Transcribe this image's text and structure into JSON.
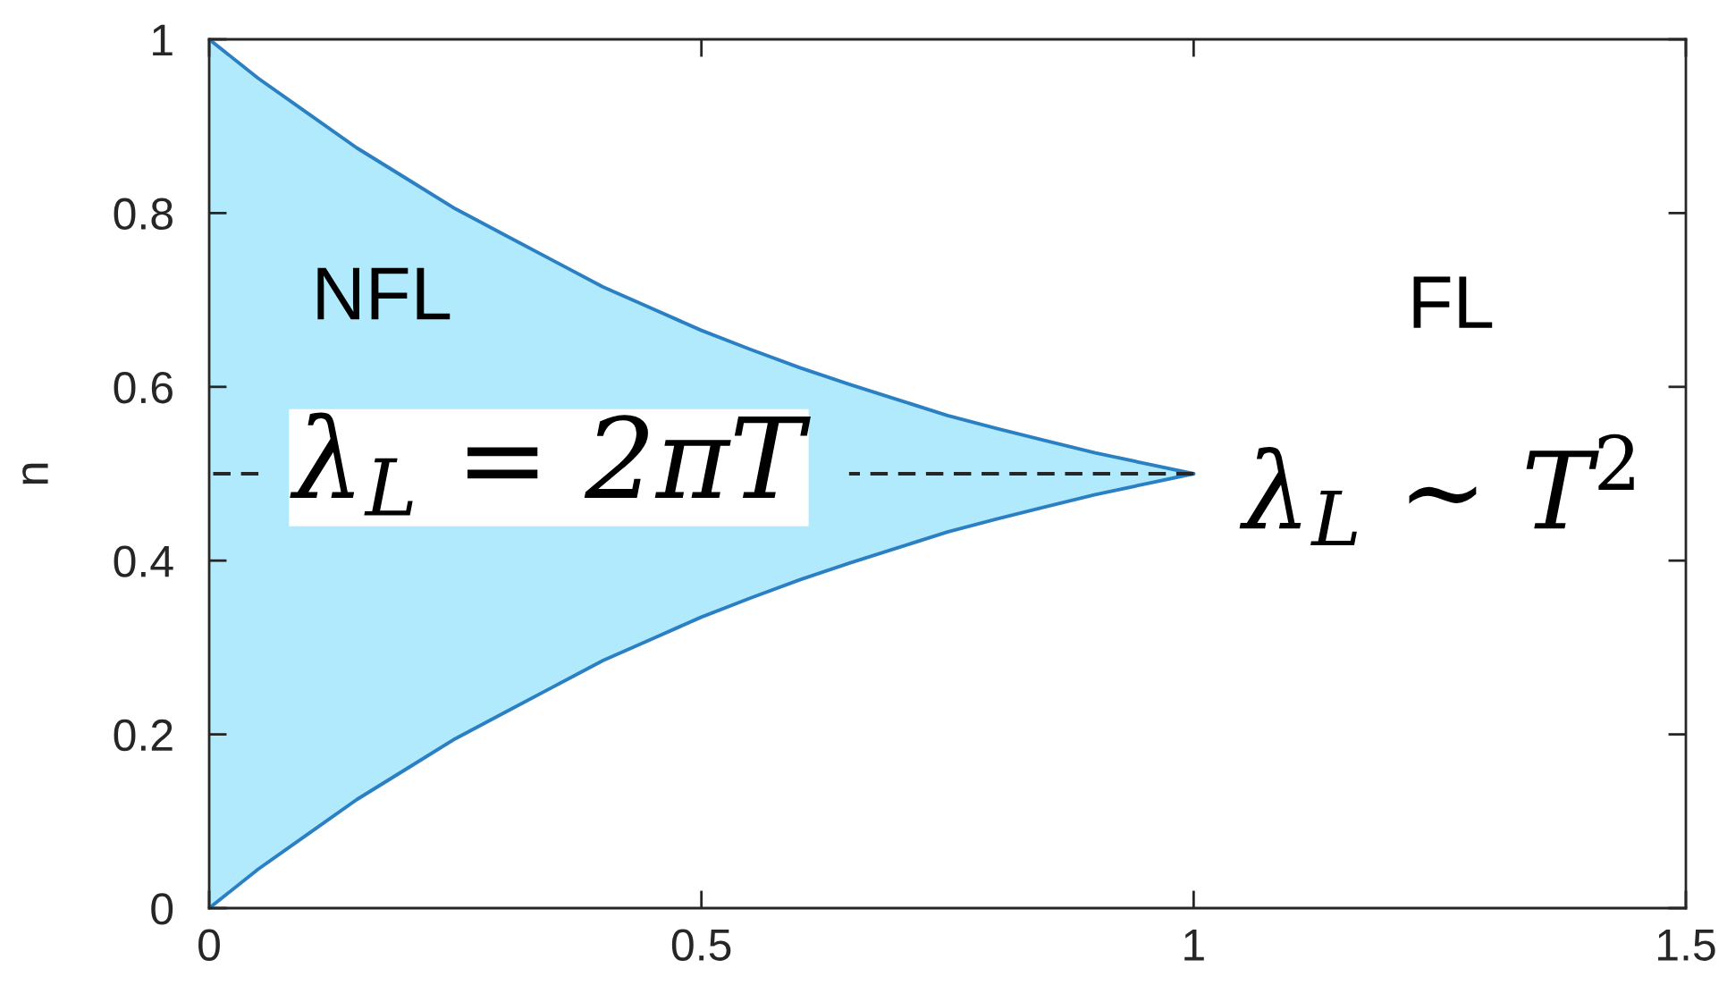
{
  "chart_data": {
    "type": "line",
    "ylabel": "n",
    "xlim": [
      0,
      1.5
    ],
    "ylim": [
      0,
      1
    ],
    "xticks": [
      0,
      0.5,
      1,
      1.5
    ],
    "yticks": [
      0,
      0.2,
      0.4,
      0.6,
      0.8,
      1
    ],
    "x": [
      0,
      0.05,
      0.1,
      0.15,
      0.2,
      0.25,
      0.3,
      0.35,
      0.4,
      0.45,
      0.5,
      0.55,
      0.6,
      0.65,
      0.7,
      0.75,
      0.8,
      0.85,
      0.9,
      0.95,
      1
    ],
    "series": [
      {
        "color": "#262626",
        "line_style": "dashed",
        "values": [
          0.5,
          0.5,
          null,
          null,
          null,
          null,
          null,
          null,
          null,
          null,
          null,
          null,
          null,
          0.5,
          0.5,
          0.5,
          0.5,
          0.5,
          0.5,
          0.5,
          0.5
        ],
        "lower": [
          0,
          0.045,
          0.085,
          0.125,
          0.16,
          0.195,
          0.225,
          0.255,
          0.285,
          0.31,
          0.335,
          0.357,
          0.378,
          0.397,
          0.415,
          0.433,
          0.448,
          0.462,
          0.476,
          0.488,
          0.5
        ],
        "upper": [
          1,
          0.955,
          0.915,
          0.875,
          0.84,
          0.805,
          0.775,
          0.745,
          0.715,
          0.69,
          0.665,
          0.643,
          0.622,
          0.603,
          0.585,
          0.567,
          0.552,
          0.538,
          0.524,
          0.512,
          0.5
        ]
      },
      {
        "color": "#2b7fc3",
        "values": [
          1,
          0.955,
          0.915,
          0.875,
          0.84,
          0.805,
          0.775,
          0.745,
          0.715,
          0.69,
          0.665,
          0.643,
          0.622,
          0.603,
          0.585,
          0.567,
          0.552,
          0.538,
          0.524,
          0.512,
          0.5
        ]
      },
      {
        "color": "#2b7fc3",
        "values": [
          0,
          0.045,
          0.085,
          0.125,
          0.16,
          0.195,
          0.225,
          0.255,
          0.285,
          0.31,
          0.335,
          0.357,
          0.378,
          0.397,
          0.415,
          0.433,
          0.448,
          0.462,
          0.476,
          0.488,
          0.5
        ]
      }
    ],
    "annotations": [
      "NFL",
      "FL",
      "λ$_{L}$ = 2πT",
      "λ$_{L}$ ∼ T$^{2}$"
    ]
  }
}
